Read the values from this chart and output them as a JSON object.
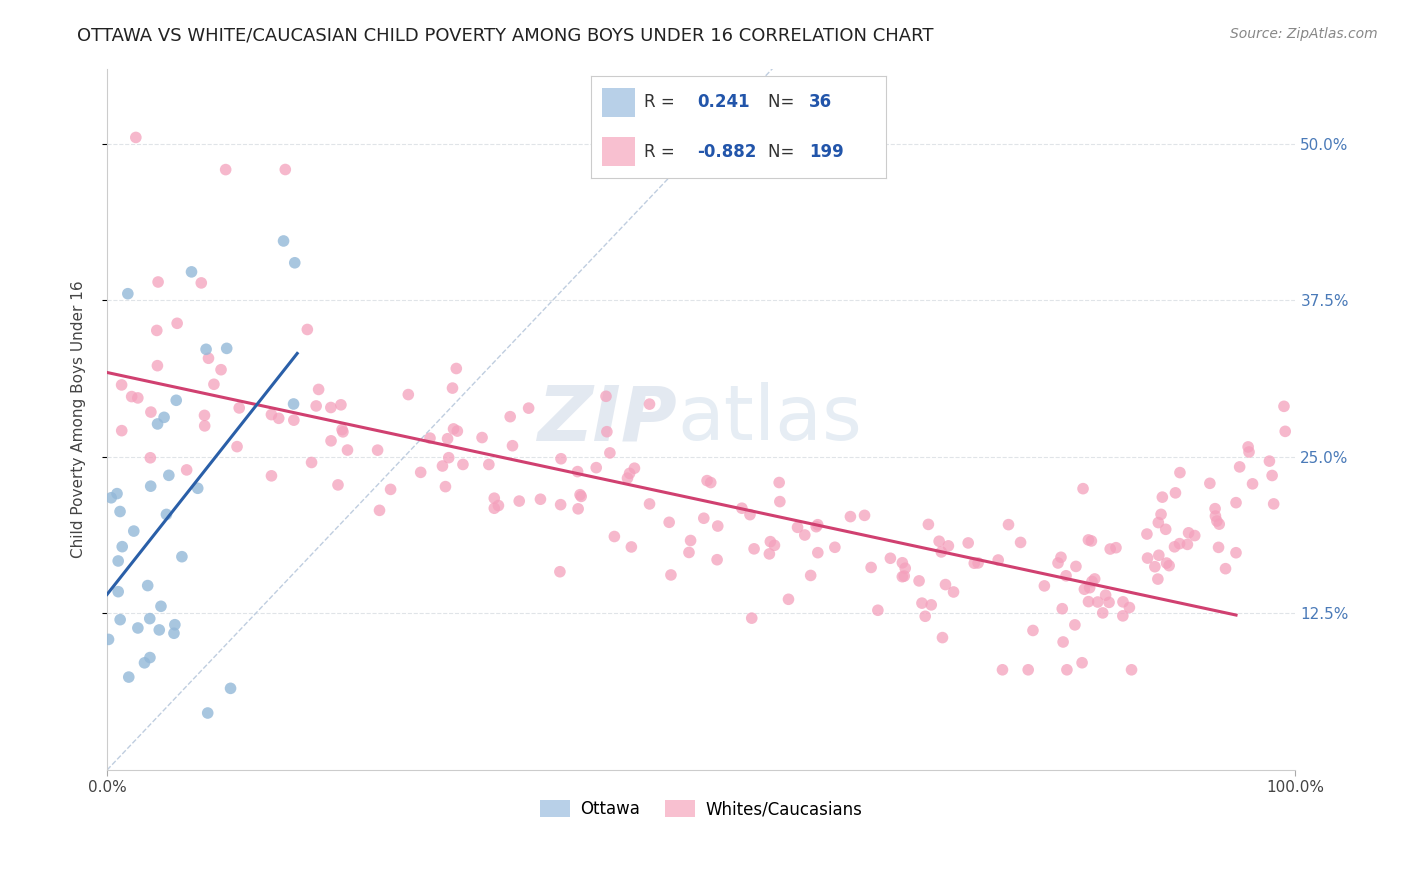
{
  "title": "OTTAWA VS WHITE/CAUCASIAN CHILD POVERTY AMONG BOYS UNDER 16 CORRELATION CHART",
  "source": "Source: ZipAtlas.com",
  "ylabel": "Child Poverty Among Boys Under 16",
  "xlabel": "",
  "legend_labels": [
    "Ottawa",
    "Whites/Caucasians"
  ],
  "r_ottawa": 0.241,
  "n_ottawa": 36,
  "r_white": -0.882,
  "n_white": 199,
  "blue_dot_color": "#93b8d8",
  "pink_dot_color": "#f4a0bc",
  "blue_line_color": "#2a5fa8",
  "pink_line_color": "#d04070",
  "diagonal_color": "#b8c8dc",
  "legend_blue_color": "#b8d0e8",
  "legend_pink_color": "#f8c0d0",
  "ytick_labels": [
    "12.5%",
    "25.0%",
    "37.5%",
    "50.0%"
  ],
  "ytick_values": [
    0.125,
    0.25,
    0.375,
    0.5
  ],
  "xtick_labels": [
    "0.0%",
    "100.0%"
  ],
  "xlim": [
    0.0,
    1.0
  ],
  "ylim": [
    0.0,
    0.56
  ],
  "background_color": "#ffffff",
  "watermark_zip": "ZIP",
  "watermark_atlas": "atlas",
  "title_fontsize": 13,
  "axis_label_fontsize": 11,
  "tick_fontsize": 11,
  "source_fontsize": 10,
  "grid_color": "#e0e4e8",
  "spine_color": "#cccccc"
}
